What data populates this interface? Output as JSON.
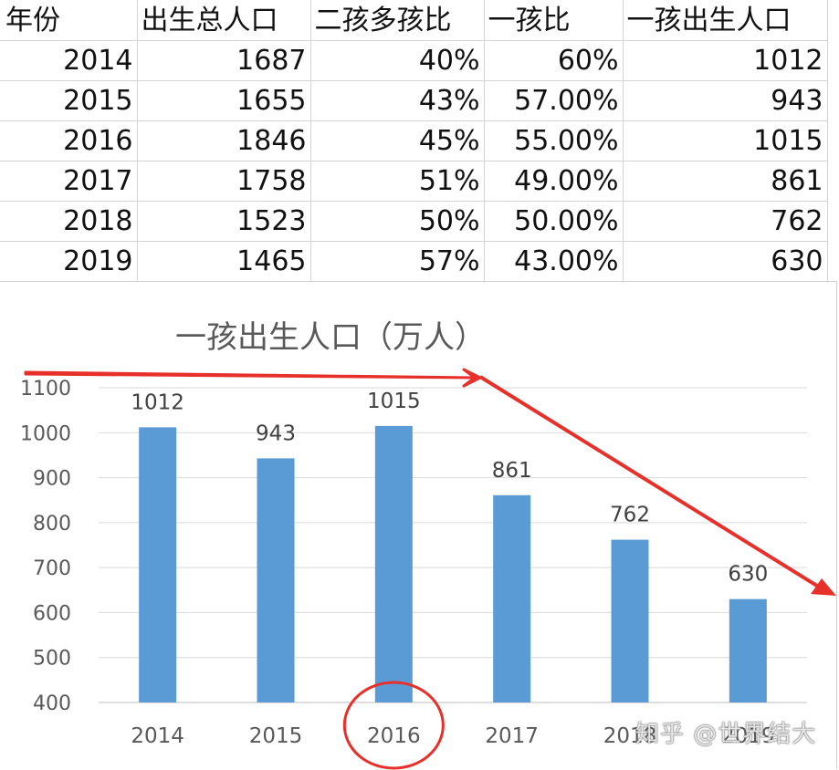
{
  "table": {
    "headers": [
      "年份",
      "出生总人口",
      "二孩多孩比",
      "一孩比",
      "一孩出生人口"
    ],
    "rows": [
      [
        "2014",
        "1687",
        "40%",
        "60%",
        "1012"
      ],
      [
        "2015",
        "1655",
        "43%",
        "57.00%",
        "943"
      ],
      [
        "2016",
        "1846",
        "45%",
        "55.00%",
        "1015"
      ],
      [
        "2017",
        "1758",
        "51%",
        "49.00%",
        "861"
      ],
      [
        "2018",
        "1523",
        "50%",
        "50.00%",
        "762"
      ],
      [
        "2019",
        "1465",
        "57%",
        "43.00%",
        "630"
      ]
    ]
  },
  "chart_data": {
    "type": "bar",
    "title": "一孩出生人口（万人）",
    "categories": [
      "2014",
      "2015",
      "2016",
      "2017",
      "2018",
      "2019"
    ],
    "values": [
      1012,
      943,
      1015,
      861,
      762,
      630
    ],
    "data_labels": [
      "1012",
      "943",
      "1015",
      "861",
      "762",
      "630"
    ],
    "yticks": [
      400,
      500,
      600,
      700,
      800,
      900,
      1000,
      1100
    ],
    "ylim": [
      400,
      1100
    ],
    "xlabel": "",
    "ylabel": "",
    "grid": true,
    "bar_color": "#5b9bd5",
    "annotations": {
      "trend_arrow_color": "#e8302a",
      "highlight_circle_category": "2016",
      "highlight_circle_color": "#e8302a"
    }
  },
  "watermark": "知乎 @世界结大"
}
